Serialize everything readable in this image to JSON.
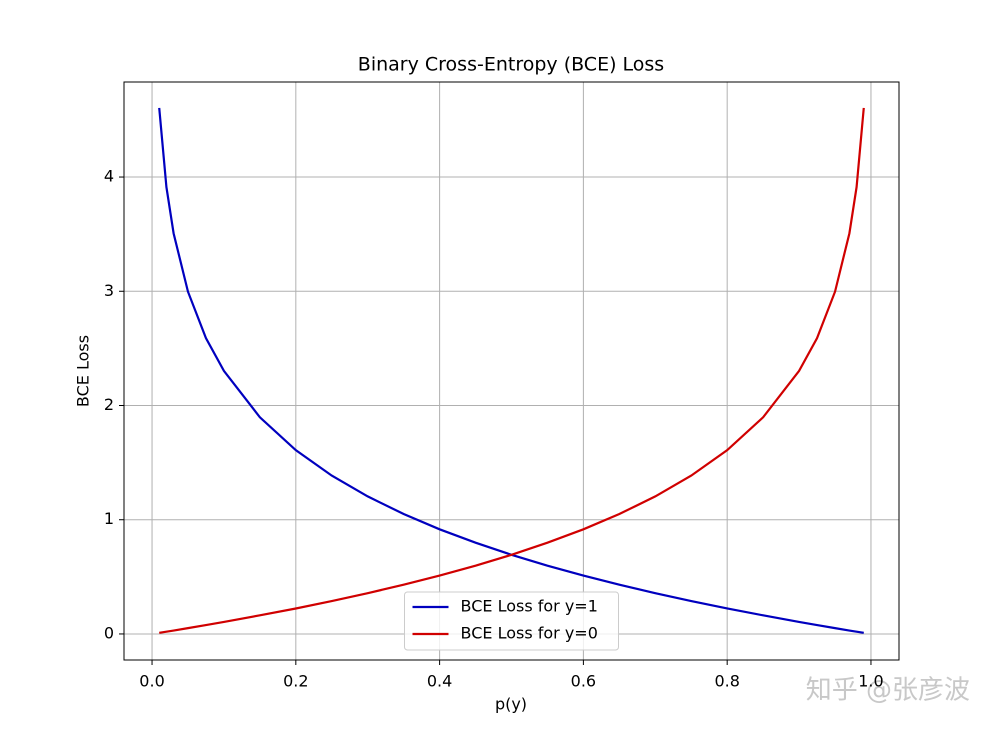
{
  "chart_data": {
    "type": "line",
    "title": "Binary Cross-Entropy (BCE) Loss",
    "x_label": "p(y)",
    "y_label": "BCE Loss",
    "x": [
      0.01,
      0.02,
      0.03,
      0.05,
      0.075,
      0.1,
      0.15,
      0.2,
      0.25,
      0.3,
      0.35,
      0.4,
      0.45,
      0.5,
      0.55,
      0.6,
      0.65,
      0.7,
      0.75,
      0.8,
      0.85,
      0.9,
      0.925,
      0.95,
      0.97,
      0.98,
      0.99
    ],
    "series": [
      {
        "name": "BCE Loss for y=1",
        "color": "#0000bf",
        "values": [
          4.605,
          3.912,
          3.507,
          2.996,
          2.59,
          2.303,
          1.897,
          1.609,
          1.386,
          1.204,
          1.05,
          0.916,
          0.799,
          0.693,
          0.598,
          0.511,
          0.431,
          0.357,
          0.288,
          0.223,
          0.163,
          0.105,
          0.078,
          0.051,
          0.03,
          0.02,
          0.01
        ]
      },
      {
        "name": "BCE Loss for y=0",
        "color": "#d00000",
        "values": [
          0.01,
          0.02,
          0.03,
          0.051,
          0.078,
          0.105,
          0.163,
          0.223,
          0.288,
          0.357,
          0.431,
          0.511,
          0.598,
          0.693,
          0.799,
          0.916,
          1.05,
          1.204,
          1.386,
          1.609,
          1.897,
          2.303,
          2.59,
          2.996,
          3.507,
          3.912,
          4.605
        ]
      }
    ],
    "xlim": [
      -0.039,
      1.039
    ],
    "xticks": [
      {
        "value": 0,
        "label": "0.0"
      },
      0.2,
      0.4,
      0.6,
      0.8,
      {
        "value": 1,
        "label": "1.0"
      }
    ],
    "ylim": [
      -0.228,
      4.832
    ],
    "yticks": [
      0,
      1,
      2,
      3,
      4
    ],
    "grid": true,
    "legend": "lower center",
    "watermark": "知乎 @张彦波"
  }
}
